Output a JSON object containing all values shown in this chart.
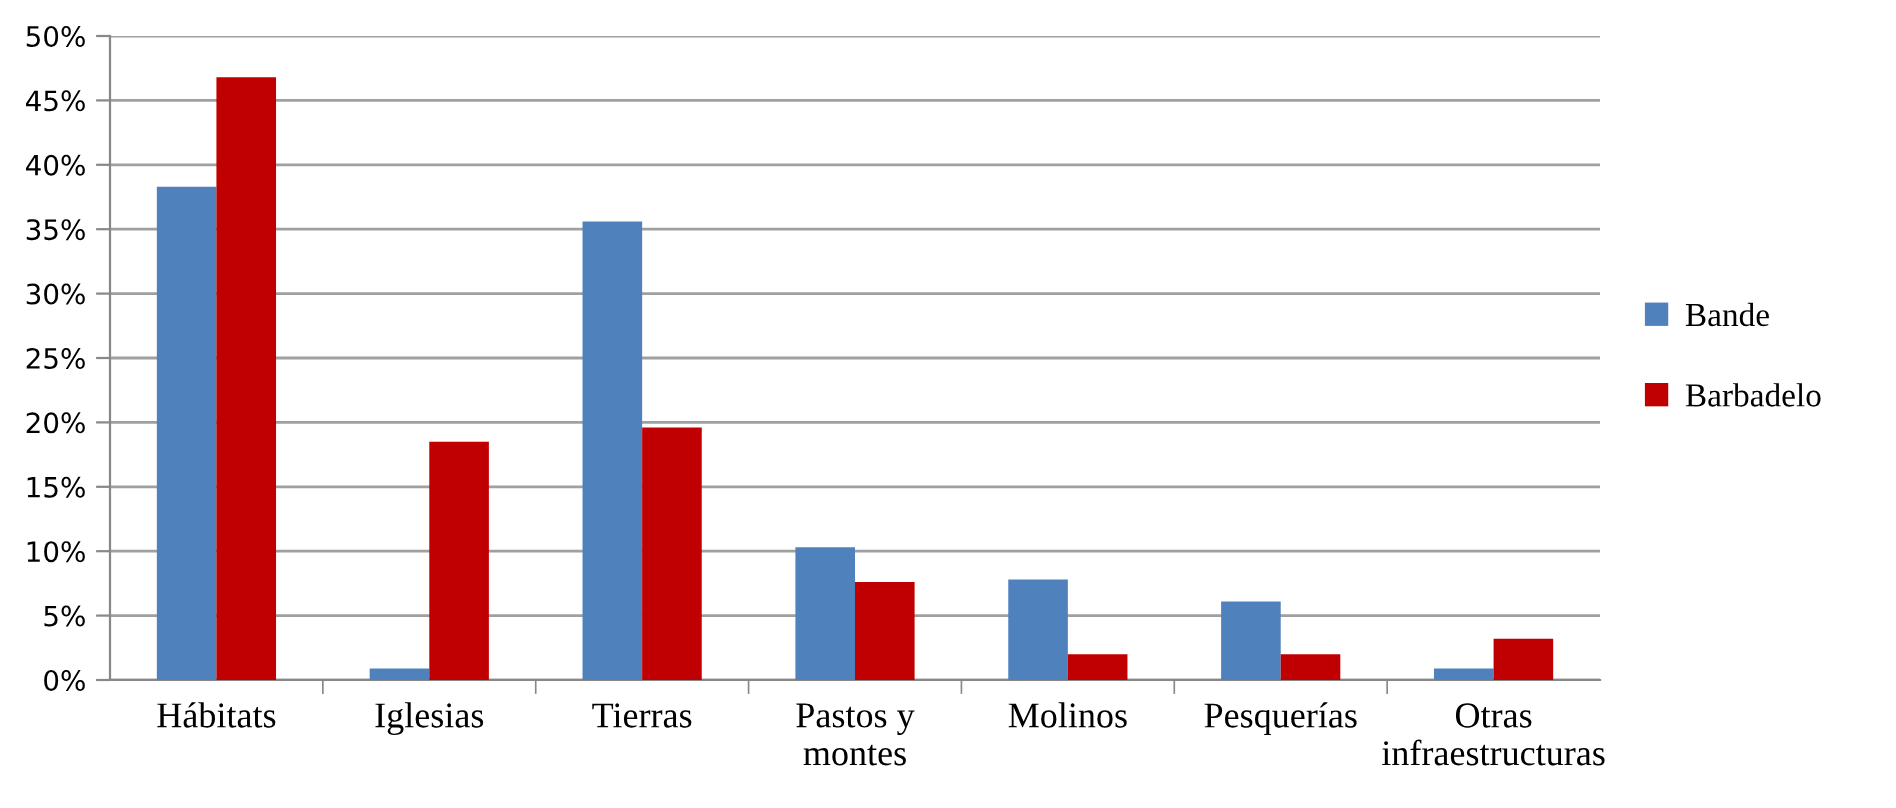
{
  "chart_data": {
    "type": "bar",
    "categories": [
      "Hábitats",
      "Iglesias",
      "Tierras",
      "Pastos y\nmontes",
      "Molinos",
      "Pesquerías",
      "Otras\ninfraestructuras"
    ],
    "series": [
      {
        "name": "Bande",
        "color": "#4f81bd",
        "values": [
          38.3,
          0.9,
          35.6,
          10.3,
          7.8,
          6.1,
          0.9
        ]
      },
      {
        "name": "Barbadelo",
        "color": "#c00000",
        "values": [
          46.8,
          18.5,
          19.6,
          7.6,
          2.0,
          2.0,
          3.2
        ]
      }
    ],
    "ylim": [
      0,
      50
    ],
    "yticks": [
      {
        "value": 0,
        "label": "0%"
      },
      {
        "value": 5,
        "label": "5%"
      },
      {
        "value": 10,
        "label": "10%"
      },
      {
        "value": 15,
        "label": "15%"
      },
      {
        "value": 20,
        "label": "20%"
      },
      {
        "value": 25,
        "label": "25%"
      },
      {
        "value": 30,
        "label": "30%"
      },
      {
        "value": 35,
        "label": "35%"
      },
      {
        "value": 40,
        "label": "40%"
      },
      {
        "value": 45,
        "label": "45%"
      },
      {
        "value": 50,
        "label": "50%"
      }
    ],
    "grid": "y",
    "legend": "right"
  }
}
